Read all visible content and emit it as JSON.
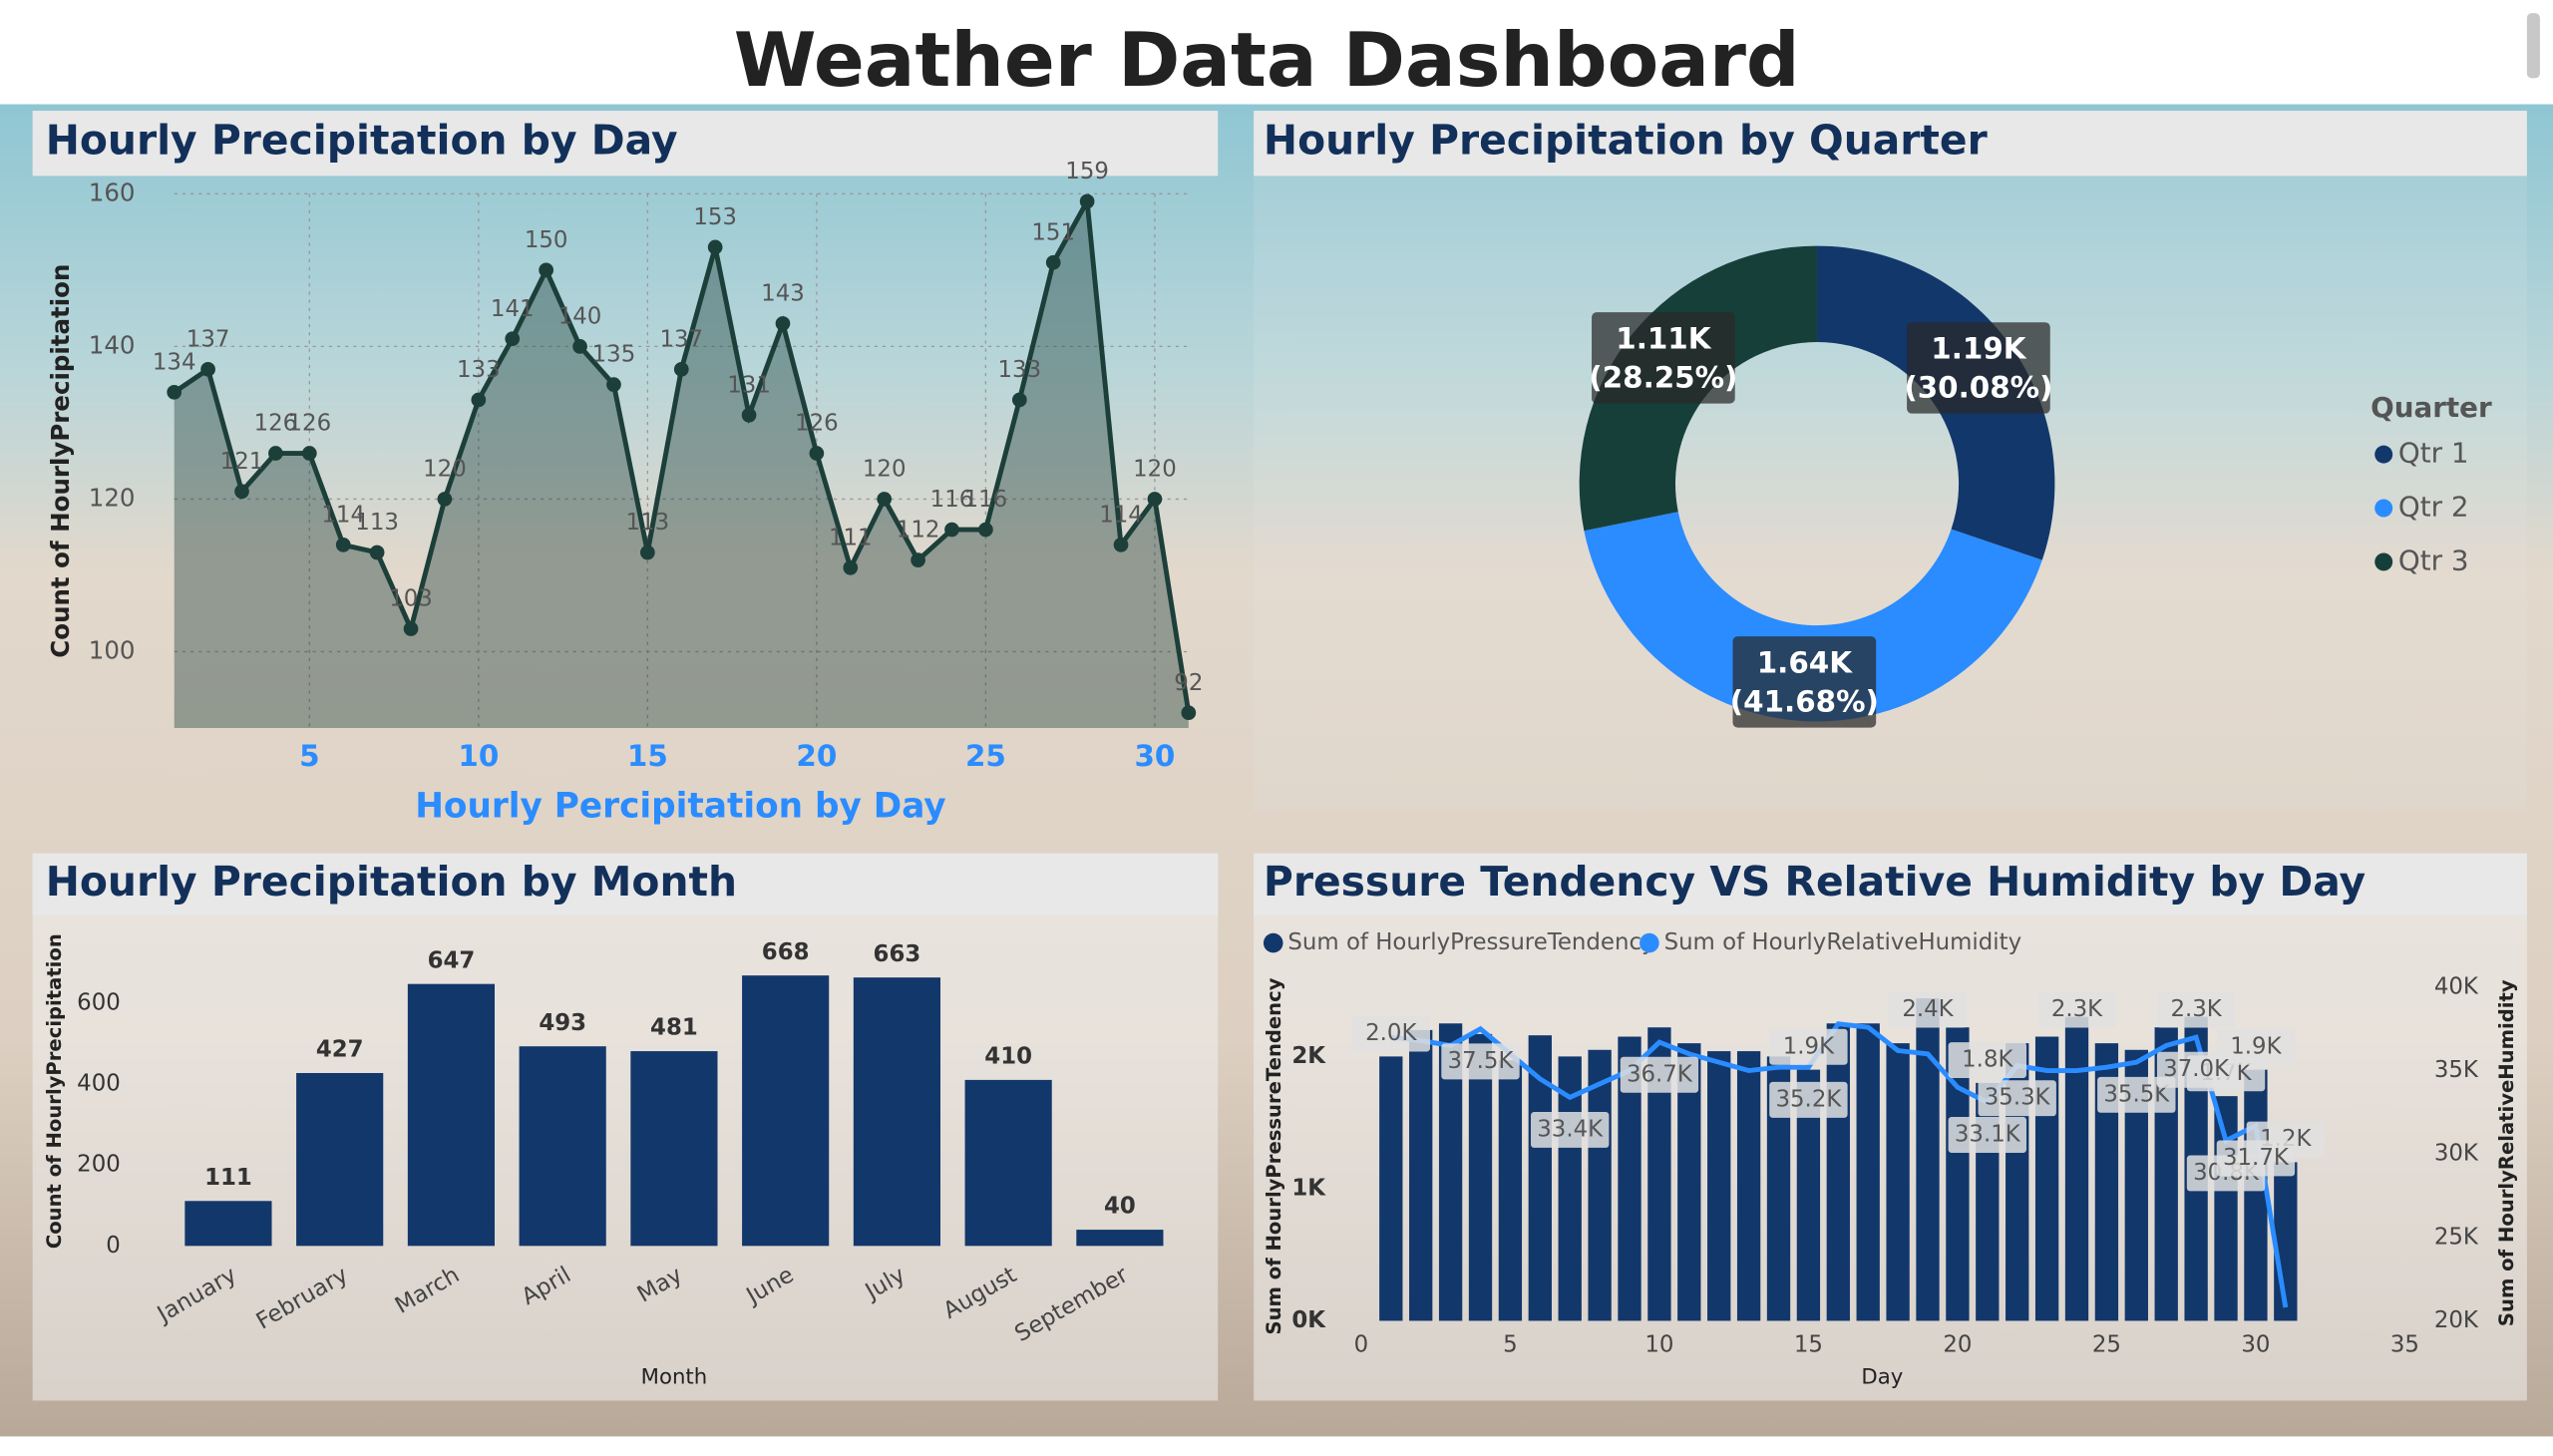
{
  "title": "Weather Data Dashboard",
  "chart_data": [
    {
      "type": "area",
      "title": "Hourly Precipitation by Day",
      "x": [
        1,
        2,
        3,
        4,
        5,
        6,
        7,
        8,
        9,
        10,
        11,
        12,
        13,
        14,
        15,
        16,
        17,
        18,
        19,
        20,
        21,
        22,
        23,
        24,
        25,
        26,
        27,
        28,
        29,
        30,
        31
      ],
      "values": [
        134,
        137,
        121,
        126,
        126,
        114,
        113,
        103,
        120,
        133,
        141,
        150,
        140,
        135,
        113,
        137,
        153,
        131,
        143,
        126,
        111,
        120,
        112,
        116,
        116,
        133,
        151,
        159,
        114,
        120,
        92
      ],
      "color": "#1d3f3a",
      "xlim": [
        1,
        31
      ],
      "xticks": [
        5,
        10,
        15,
        20,
        25,
        30
      ],
      "ylim": [
        90,
        160
      ],
      "yticks": [
        100,
        120,
        140,
        160
      ],
      "x_label": "Hourly Percipitation by Day",
      "y_label": "Count of HourlyPrecipitation",
      "grid": true
    },
    {
      "type": "donut",
      "title": "Hourly Precipitation by Quarter",
      "categories": [
        "Qtr 1",
        "Qtr 2",
        "Qtr 3"
      ],
      "values": [
        1190,
        1640,
        1110
      ],
      "value_labels": [
        "1.19K",
        "1.64K",
        "1.11K"
      ],
      "percents": [
        30.08,
        41.68,
        28.25
      ],
      "percent_labels": [
        "(30.08%)",
        "(41.68%)",
        "(28.25%)"
      ],
      "colors": [
        "#12376b",
        "#2a8cff",
        "#173f3a"
      ],
      "legend_title": "Quarter",
      "legend": "right"
    },
    {
      "type": "bar",
      "title": "Hourly Precipitation by Month",
      "categories": [
        "January",
        "February",
        "March",
        "April",
        "May",
        "June",
        "July",
        "August",
        "September"
      ],
      "values": [
        111,
        427,
        647,
        493,
        481,
        668,
        663,
        410,
        40
      ],
      "color": "#12376b",
      "ylim": [
        0,
        700
      ],
      "yticks": [
        0,
        200,
        400,
        600
      ],
      "x_label": "Month",
      "y_label": "Count of HourlyPrecipitation"
    },
    {
      "type": "combo",
      "title": "Pressure Tendency VS Relative Humidity by Day",
      "x": [
        1,
        2,
        3,
        4,
        5,
        6,
        7,
        8,
        9,
        10,
        11,
        12,
        13,
        14,
        15,
        16,
        17,
        18,
        19,
        20,
        21,
        22,
        23,
        24,
        25,
        26,
        27,
        28,
        29,
        30,
        31
      ],
      "series": [
        {
          "name": "Sum of HourlyPressureTendency",
          "color": "#12376b",
          "kind": "bar",
          "values": [
            2000,
            2200,
            2250,
            2170,
            1970,
            2160,
            2000,
            2050,
            2150,
            2220,
            2100,
            2040,
            2040,
            2000,
            1900,
            2250,
            2250,
            2100,
            2440,
            2220,
            1800,
            2100,
            2150,
            2300,
            2100,
            2050,
            2220,
            2300,
            1700,
            1900,
            1200
          ],
          "value_labels": [
            "2.0K",
            null,
            null,
            null,
            null,
            null,
            null,
            null,
            null,
            null,
            null,
            null,
            null,
            null,
            "1.9K",
            null,
            null,
            null,
            "2.4K",
            null,
            "1.8K",
            null,
            null,
            "2.3K",
            null,
            null,
            null,
            "2.3K",
            "1.7K",
            "1.9K",
            "1.2K"
          ]
        },
        {
          "name": "Sum of HourlyRelativeHumidity",
          "color": "#2a8cff",
          "kind": "line",
          "axis": "y2",
          "values": [
            37000,
            36800,
            36500,
            37500,
            36000,
            34500,
            33400,
            34200,
            35000,
            36700,
            36000,
            35500,
            35000,
            35200,
            35200,
            37800,
            37600,
            36200,
            36000,
            34000,
            33100,
            35300,
            35000,
            35000,
            35200,
            35500,
            36500,
            37000,
            30800,
            31700,
            20800
          ],
          "value_labels": [
            null,
            null,
            null,
            "37.5K",
            null,
            null,
            "33.4K",
            null,
            null,
            "36.7K",
            null,
            null,
            null,
            null,
            "35.2K",
            null,
            null,
            null,
            null,
            null,
            "33.1K",
            "35.3K",
            null,
            null,
            null,
            "35.5K",
            null,
            "37.0K",
            "30.8K",
            "31.7K",
            null
          ]
        }
      ],
      "xlim": [
        0,
        35
      ],
      "xticks": [
        0,
        5,
        10,
        15,
        20,
        25,
        30,
        35
      ],
      "ylim": [
        0,
        2600
      ],
      "yticks": [
        {
          "value": 0,
          "label": "0K"
        },
        {
          "value": 1000,
          "label": "1K"
        },
        {
          "value": 2000,
          "label": "2K"
        }
      ],
      "y2lim": [
        20000,
        40600
      ],
      "y2ticks": [
        {
          "value": 20000,
          "label": "20K"
        },
        {
          "value": 25000,
          "label": "25K"
        },
        {
          "value": 30000,
          "label": "30K"
        },
        {
          "value": 35000,
          "label": "35K"
        },
        {
          "value": 40000,
          "label": "40K"
        }
      ],
      "x_label": "Day",
      "y_label": "Sum of HourlyPressureTendency",
      "y2_label": "Sum of HourlyRelativeHumidity",
      "legend": "top"
    }
  ]
}
